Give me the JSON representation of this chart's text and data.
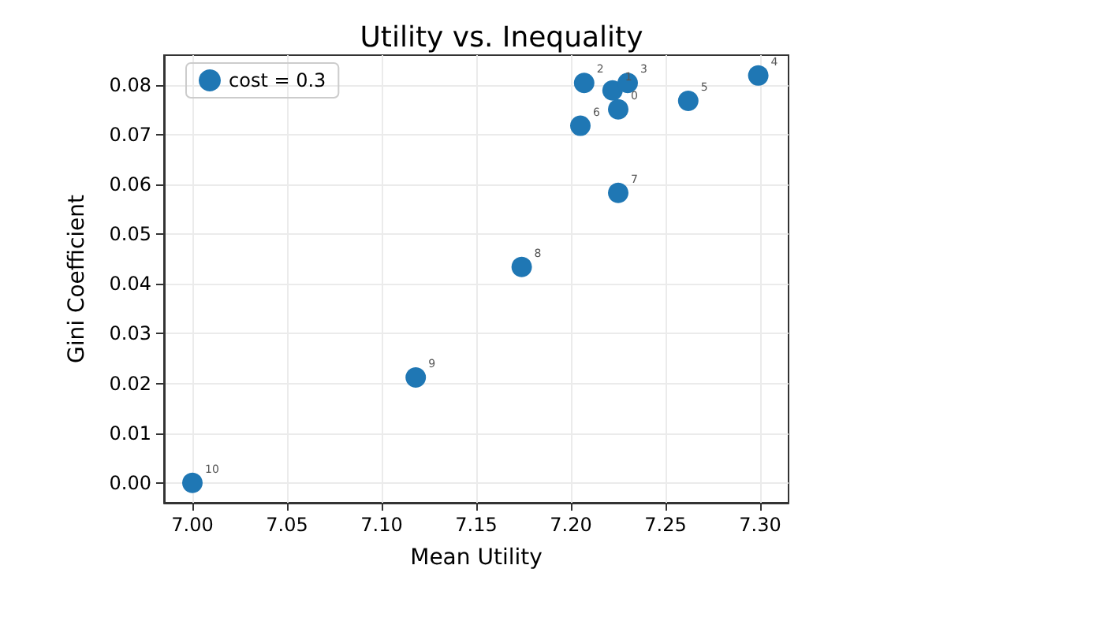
{
  "chart_data": {
    "type": "scatter",
    "title": "Utility vs. Inequality",
    "xlabel": "Mean Utility",
    "ylabel": "Gini Coefficient",
    "series": [
      {
        "name": "cost = 0.3",
        "color": "#1f77b4",
        "x": [
          7.225,
          7.222,
          7.207,
          7.23,
          7.299,
          7.262,
          7.205,
          7.225,
          7.174,
          7.118,
          7.0
        ],
        "values": [
          0.0751,
          0.0789,
          0.0804,
          0.0804,
          0.0819,
          0.0768,
          0.0718,
          0.0583,
          0.0434,
          0.0212,
          0.0
        ]
      }
    ],
    "annotations": [
      {
        "text": "0",
        "x": 7.225,
        "y": 0.0751
      },
      {
        "text": "1",
        "x": 7.222,
        "y": 0.0789
      },
      {
        "text": "2",
        "x": 7.207,
        "y": 0.0804
      },
      {
        "text": "3",
        "x": 7.23,
        "y": 0.0804
      },
      {
        "text": "4",
        "x": 7.299,
        "y": 0.0819
      },
      {
        "text": "5",
        "x": 7.262,
        "y": 0.0768
      },
      {
        "text": "6",
        "x": 7.205,
        "y": 0.0718
      },
      {
        "text": "7",
        "x": 7.225,
        "y": 0.0583
      },
      {
        "text": "8",
        "x": 7.174,
        "y": 0.0434
      },
      {
        "text": "9",
        "x": 7.118,
        "y": 0.0212
      },
      {
        "text": "10",
        "x": 7.0,
        "y": 0.0
      }
    ],
    "xlim": [
      6.985,
      7.315
    ],
    "xticks": [
      {
        "value": 7.0,
        "label": "7.00"
      },
      7.05,
      {
        "value": 7.1,
        "label": "7.10"
      },
      7.15,
      {
        "value": 7.2,
        "label": "7.20"
      },
      7.25,
      {
        "value": 7.3,
        "label": "7.30"
      }
    ],
    "ylim": [
      -0.004,
      0.086
    ],
    "yticks": [
      {
        "value": 0.0,
        "label": "0.00"
      },
      0.01,
      0.02,
      0.03,
      0.04,
      0.05,
      0.06,
      0.07,
      0.08
    ],
    "grid": true,
    "legend": "top left",
    "marker": "circle"
  }
}
